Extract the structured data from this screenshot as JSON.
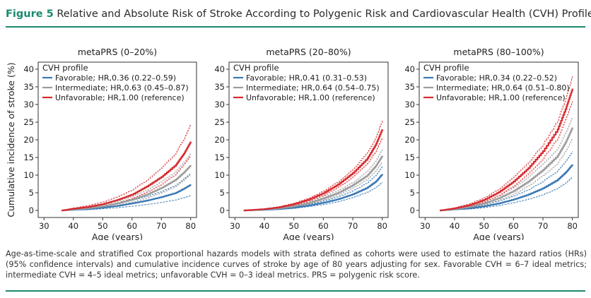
{
  "figure": {
    "label": "Figure 5",
    "title": "Relative and Absolute Risk of Stroke According to Polygenic Risk and Cardiovascular Health (CVH) Profile",
    "caption": "Age-as-time-scale and stratified Cox proportional hazards models with strata defined as cohorts were used to estimate the hazard ratios (HRs) (95% confidence intervals) and cumulative incidence curves of stroke by age of 80 years adjusting for sex. Favorable CVH = 6–7 ideal metrics; intermediate CVH = 4–5 ideal metrics; unfavorable CVH = 0–3 ideal metrics. PRS = polygenic risk score."
  },
  "colors": {
    "favorable": "#3a78b5",
    "intermediate": "#9c9c9c",
    "unfavorable": "#d62a2f",
    "accent": "#1a8a6e"
  },
  "chart_data": [
    {
      "type": "line",
      "title": "metaPRS (0–20%)",
      "xlabel": "Age (years)",
      "ylabel": "Cumulative incidence of stroke (%)",
      "xlim": [
        28,
        82
      ],
      "ylim": [
        -2,
        42
      ],
      "xticks": [
        30,
        40,
        50,
        60,
        70,
        80
      ],
      "yticks": [
        0,
        5,
        10,
        15,
        20,
        25,
        30,
        35,
        40
      ],
      "legend_title": "CVH profile",
      "legend_position": "top-left",
      "ci": "dashed",
      "series": [
        {
          "name": "Favorable; HR,0.36 (0.22–0.59)",
          "color": "#3a78b5",
          "x": [
            36,
            40,
            45,
            50,
            55,
            60,
            65,
            70,
            75,
            78,
            80
          ],
          "y": [
            0,
            0.2,
            0.4,
            0.8,
            1.3,
            2.0,
            2.8,
            3.8,
            5.0,
            6.3,
            7.3
          ],
          "lower": [
            0,
            0.1,
            0.2,
            0.5,
            0.8,
            1.2,
            1.7,
            2.3,
            3.0,
            3.7,
            4.2
          ],
          "upper": [
            0,
            0.3,
            0.7,
            1.2,
            1.9,
            2.9,
            4.0,
            5.4,
            7.2,
            9.2,
            10.5
          ]
        },
        {
          "name": "Intermediate; HR,0.63 (0.45–0.87)",
          "color": "#9c9c9c",
          "x": [
            36,
            40,
            45,
            50,
            55,
            60,
            65,
            70,
            75,
            78,
            80
          ],
          "y": [
            0,
            0.3,
            0.6,
            1.2,
            2.0,
            3.1,
            4.5,
            6.4,
            8.8,
            11.0,
            12.8
          ],
          "lower": [
            0,
            0.2,
            0.4,
            0.9,
            1.5,
            2.4,
            3.5,
            5.0,
            6.9,
            8.8,
            10.3
          ],
          "upper": [
            0,
            0.4,
            0.8,
            1.6,
            2.6,
            4.0,
            5.8,
            8.2,
            11.2,
            14.0,
            16.2
          ]
        },
        {
          "name": "Unfavorable; HR,1.00 (reference)",
          "color": "#d62a2f",
          "x": [
            36,
            40,
            45,
            50,
            55,
            60,
            65,
            70,
            75,
            78,
            80
          ],
          "y": [
            0,
            0.5,
            1.0,
            1.8,
            3.0,
            4.5,
            6.8,
            9.5,
            13.0,
            16.5,
            19.5
          ],
          "lower": [
            0,
            0.3,
            0.7,
            1.3,
            2.2,
            3.4,
            5.2,
            7.4,
            10.4,
            13.3,
            15.5
          ],
          "upper": [
            0,
            0.7,
            1.4,
            2.4,
            3.9,
            5.8,
            8.6,
            12.0,
            16.5,
            20.8,
            24.5
          ]
        }
      ]
    },
    {
      "type": "line",
      "title": "metaPRS (20–80%)",
      "xlabel": "Age (years)",
      "ylabel": "",
      "xlim": [
        28,
        82
      ],
      "ylim": [
        -2,
        42
      ],
      "xticks": [
        30,
        40,
        50,
        60,
        70,
        80
      ],
      "yticks": [
        0,
        5,
        10,
        15,
        20,
        25,
        30,
        35,
        40
      ],
      "legend_title": "CVH profile",
      "legend_position": "top-left",
      "ci": "dashed",
      "series": [
        {
          "name": "Favorable; HR,0.41 (0.31–0.53)",
          "color": "#3a78b5",
          "x": [
            33,
            40,
            45,
            50,
            55,
            60,
            65,
            70,
            75,
            78,
            80
          ],
          "y": [
            0,
            0.2,
            0.4,
            0.8,
            1.4,
            2.2,
            3.2,
            4.6,
            6.5,
            8.3,
            10.3
          ],
          "lower": [
            0,
            0.1,
            0.3,
            0.6,
            1.1,
            1.7,
            2.5,
            3.7,
            5.2,
            6.6,
            8.0
          ],
          "upper": [
            0,
            0.3,
            0.5,
            1.0,
            1.7,
            2.7,
            3.9,
            5.6,
            7.9,
            10.1,
            12.5
          ]
        },
        {
          "name": "Intermediate; HR,0.64 (0.54–0.75)",
          "color": "#9c9c9c",
          "x": [
            33,
            40,
            45,
            50,
            55,
            60,
            65,
            70,
            75,
            78,
            80
          ],
          "y": [
            0,
            0.3,
            0.6,
            1.2,
            2.1,
            3.4,
            5.0,
            7.2,
            10.0,
            12.8,
            15.5
          ],
          "lower": [
            0,
            0.2,
            0.5,
            1.0,
            1.8,
            2.9,
            4.4,
            6.4,
            8.9,
            11.4,
            13.8
          ],
          "upper": [
            0,
            0.4,
            0.7,
            1.4,
            2.4,
            3.9,
            5.7,
            8.0,
            11.2,
            14.3,
            17.3
          ]
        },
        {
          "name": "Unfavorable; HR,1.00 (reference)",
          "color": "#d62a2f",
          "x": [
            33,
            40,
            45,
            50,
            55,
            60,
            65,
            70,
            75,
            78,
            80
          ],
          "y": [
            0,
            0.4,
            0.9,
            1.8,
            3.1,
            4.9,
            7.4,
            10.6,
            14.8,
            19.0,
            23.0
          ],
          "lower": [
            0,
            0.3,
            0.7,
            1.5,
            2.7,
            4.3,
            6.6,
            9.5,
            13.3,
            17.1,
            20.6
          ],
          "upper": [
            0,
            0.5,
            1.1,
            2.1,
            3.5,
            5.5,
            8.2,
            11.8,
            16.4,
            21.0,
            25.5
          ]
        }
      ]
    },
    {
      "type": "line",
      "title": "metaPRS (80–100%)",
      "xlabel": "Age (years)",
      "ylabel": "",
      "xlim": [
        28,
        82
      ],
      "ylim": [
        -2,
        42
      ],
      "xticks": [
        30,
        40,
        50,
        60,
        70,
        80
      ],
      "yticks": [
        0,
        5,
        10,
        15,
        20,
        25,
        30,
        35,
        40
      ],
      "legend_title": "CVH profile",
      "legend_position": "top-left",
      "ci": "dashed",
      "series": [
        {
          "name": "Favorable; HR,0.34 (0.22–0.52)",
          "color": "#3a78b5",
          "x": [
            35,
            40,
            45,
            50,
            55,
            60,
            65,
            70,
            75,
            78,
            80
          ],
          "y": [
            0,
            0.3,
            0.6,
            1.2,
            2.0,
            3.1,
            4.5,
            6.3,
            8.7,
            11.0,
            13.0
          ],
          "lower": [
            0,
            0.2,
            0.4,
            0.8,
            1.4,
            2.2,
            3.2,
            4.5,
            6.3,
            8.0,
            9.5
          ],
          "upper": [
            0,
            0.4,
            0.8,
            1.6,
            2.7,
            4.1,
            5.9,
            8.3,
            11.3,
            14.2,
            16.7
          ]
        },
        {
          "name": "Intermediate; HR,0.64 (0.51–0.80)",
          "color": "#9c9c9c",
          "x": [
            35,
            40,
            45,
            50,
            55,
            60,
            65,
            70,
            75,
            78,
            80
          ],
          "y": [
            0,
            0.4,
            1.0,
            2.0,
            3.5,
            5.5,
            8.2,
            11.5,
            15.5,
            19.8,
            23.5
          ],
          "lower": [
            0,
            0.3,
            0.7,
            1.6,
            2.9,
            4.6,
            7.0,
            9.9,
            13.5,
            17.2,
            20.5
          ],
          "upper": [
            0,
            0.5,
            1.3,
            2.5,
            4.2,
            6.5,
            9.5,
            13.2,
            17.7,
            22.5,
            26.5
          ]
        },
        {
          "name": "Unfavorable; HR,1.00 (reference)",
          "color": "#d62a2f",
          "x": [
            35,
            40,
            45,
            50,
            55,
            60,
            65,
            70,
            75,
            78,
            80
          ],
          "y": [
            0,
            0.6,
            1.5,
            3.0,
            5.2,
            8.2,
            12.0,
            16.8,
            23.0,
            29.5,
            34.5
          ],
          "lower": [
            0,
            0.4,
            1.1,
            2.4,
            4.3,
            7.0,
            10.5,
            14.8,
            20.5,
            26.5,
            31.0
          ],
          "upper": [
            0,
            0.8,
            1.9,
            3.6,
            6.1,
            9.4,
            13.6,
            18.8,
            25.5,
            32.5,
            38.0
          ]
        }
      ]
    }
  ]
}
